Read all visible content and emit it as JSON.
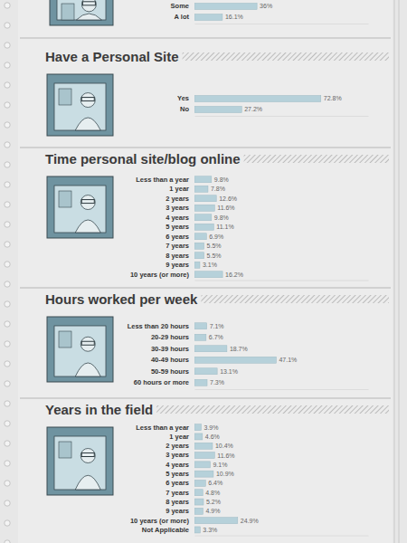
{
  "chart_data": [
    {
      "type": "bar",
      "orientation": "horizontal",
      "data_labels": true,
      "tick_labels": "y",
      "color": "#b6d1da",
      "categories": [
        "Some",
        "A lot"
      ],
      "values": [
        36,
        16.1
      ],
      "value_labels": [
        "36%",
        "16.1%"
      ],
      "xlim": [
        0,
        100
      ]
    },
    {
      "type": "bar",
      "orientation": "horizontal",
      "data_labels": true,
      "tick_labels": "y",
      "color": "#b6d1da",
      "title": "Have a Personal Site",
      "categories": [
        "Yes",
        "No"
      ],
      "values": [
        72.8,
        27.2
      ],
      "value_labels": [
        "72.8%",
        "27.2%"
      ],
      "xlim": [
        0,
        100
      ]
    },
    {
      "type": "bar",
      "orientation": "horizontal",
      "data_labels": true,
      "tick_labels": "y",
      "color": "#b6d1da",
      "title": "Time personal site/blog online",
      "categories": [
        "Less than a year",
        "1 year",
        "2 years",
        "3 years",
        "4 years",
        "5 years",
        "6 years",
        "7 years",
        "8 years",
        "9 years",
        "10 years (or more)"
      ],
      "values": [
        9.8,
        7.8,
        12.6,
        11.6,
        9.8,
        11.1,
        6.9,
        5.5,
        5.5,
        3.1,
        16.2
      ],
      "value_labels": [
        "9.8%",
        "7.8%",
        "12.6%",
        "11.6%",
        "9.8%",
        "11.1%",
        "6.9%",
        "5.5%",
        "5.5%",
        "3.1%",
        "16.2%"
      ],
      "xlim": [
        0,
        100
      ]
    },
    {
      "type": "bar",
      "orientation": "horizontal",
      "data_labels": true,
      "tick_labels": "y",
      "color": "#b6d1da",
      "title": "Hours worked per week",
      "categories": [
        "Less than 20 hours",
        "20-29 hours",
        "30-39 hours",
        "40-49 hours",
        "50-59 hours",
        "60 hours or more"
      ],
      "values": [
        7.1,
        6.7,
        18.7,
        47.1,
        13.1,
        7.3
      ],
      "value_labels": [
        "7.1%",
        "6.7%",
        "18.7%",
        "47.1%",
        "13.1%",
        "7.3%"
      ],
      "xlim": [
        0,
        100
      ]
    },
    {
      "type": "bar",
      "orientation": "horizontal",
      "data_labels": true,
      "tick_labels": "y",
      "color": "#b6d1da",
      "title": "Years in the field",
      "categories": [
        "Less than a year",
        "1 year",
        "2 years",
        "3 years",
        "4 years",
        "5 years",
        "6 years",
        "7 years",
        "8 years",
        "9 years",
        "10 years (or more)",
        "Not Applicable"
      ],
      "values": [
        3.9,
        4.6,
        10.4,
        11.6,
        9.1,
        10.9,
        6.4,
        4.8,
        5.2,
        4.9,
        24.9,
        3.3
      ],
      "value_labels": [
        "3.9%",
        "4.6%",
        "10.4%",
        "11.6%",
        "9.1%",
        "10.9%",
        "6.4%",
        "4.8%",
        "5.2%",
        "4.9%",
        "24.9%",
        "3.3%"
      ],
      "xlim": [
        0,
        100
      ]
    }
  ]
}
